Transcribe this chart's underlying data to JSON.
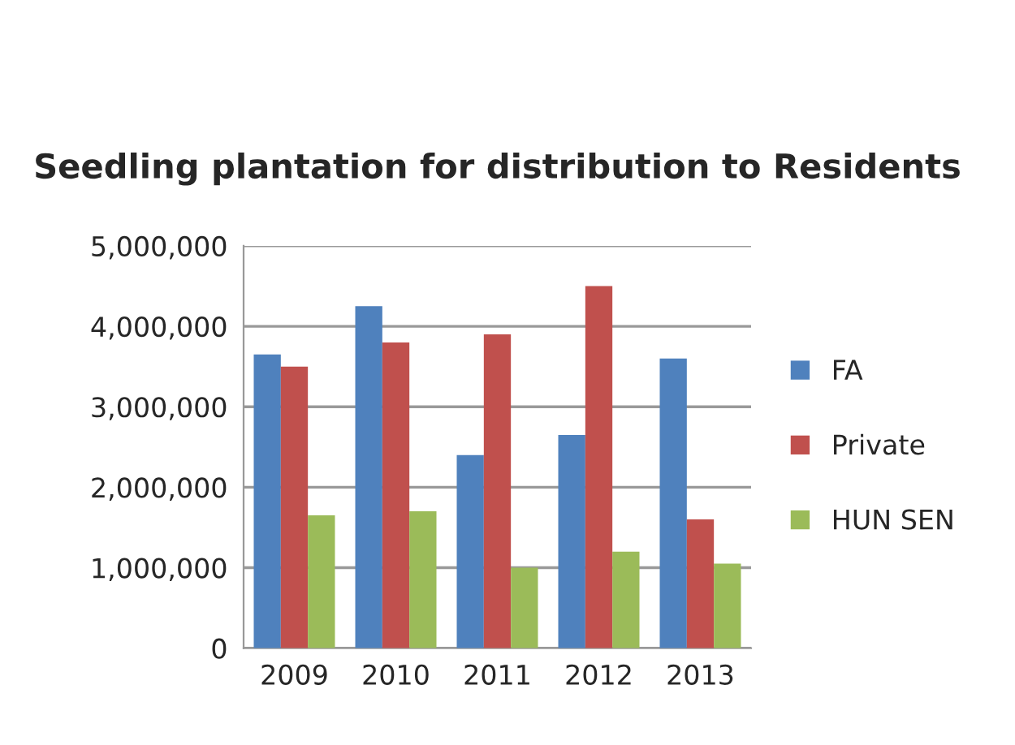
{
  "chart_data": {
    "type": "bar",
    "title": "Seedling plantation for distribution to Residents",
    "categories": [
      "2009",
      "2010",
      "2011",
      "2012",
      "2013"
    ],
    "series": [
      {
        "name": "FA",
        "color": "#4f81bd",
        "values": [
          3650000,
          4250000,
          2400000,
          2650000,
          3600000
        ]
      },
      {
        "name": "Private",
        "color": "#c0504d",
        "values": [
          3500000,
          3800000,
          3900000,
          4500000,
          1600000
        ]
      },
      {
        "name": "HUN SEN",
        "color": "#9bbb59",
        "values": [
          1650000,
          1700000,
          1000000,
          1200000,
          1050000
        ]
      }
    ],
    "ylim": [
      0,
      5000000
    ],
    "yticks": [
      {
        "value": 0,
        "label": "0"
      },
      {
        "value": 1000000,
        "label": "1,000,000"
      },
      {
        "value": 2000000,
        "label": "2,000,000"
      },
      {
        "value": 3000000,
        "label": "3,000,000"
      },
      {
        "value": 4000000,
        "label": "4,000,000"
      },
      {
        "value": 5000000,
        "label": "5,000,000"
      }
    ],
    "grid": "y",
    "legend": "right"
  }
}
